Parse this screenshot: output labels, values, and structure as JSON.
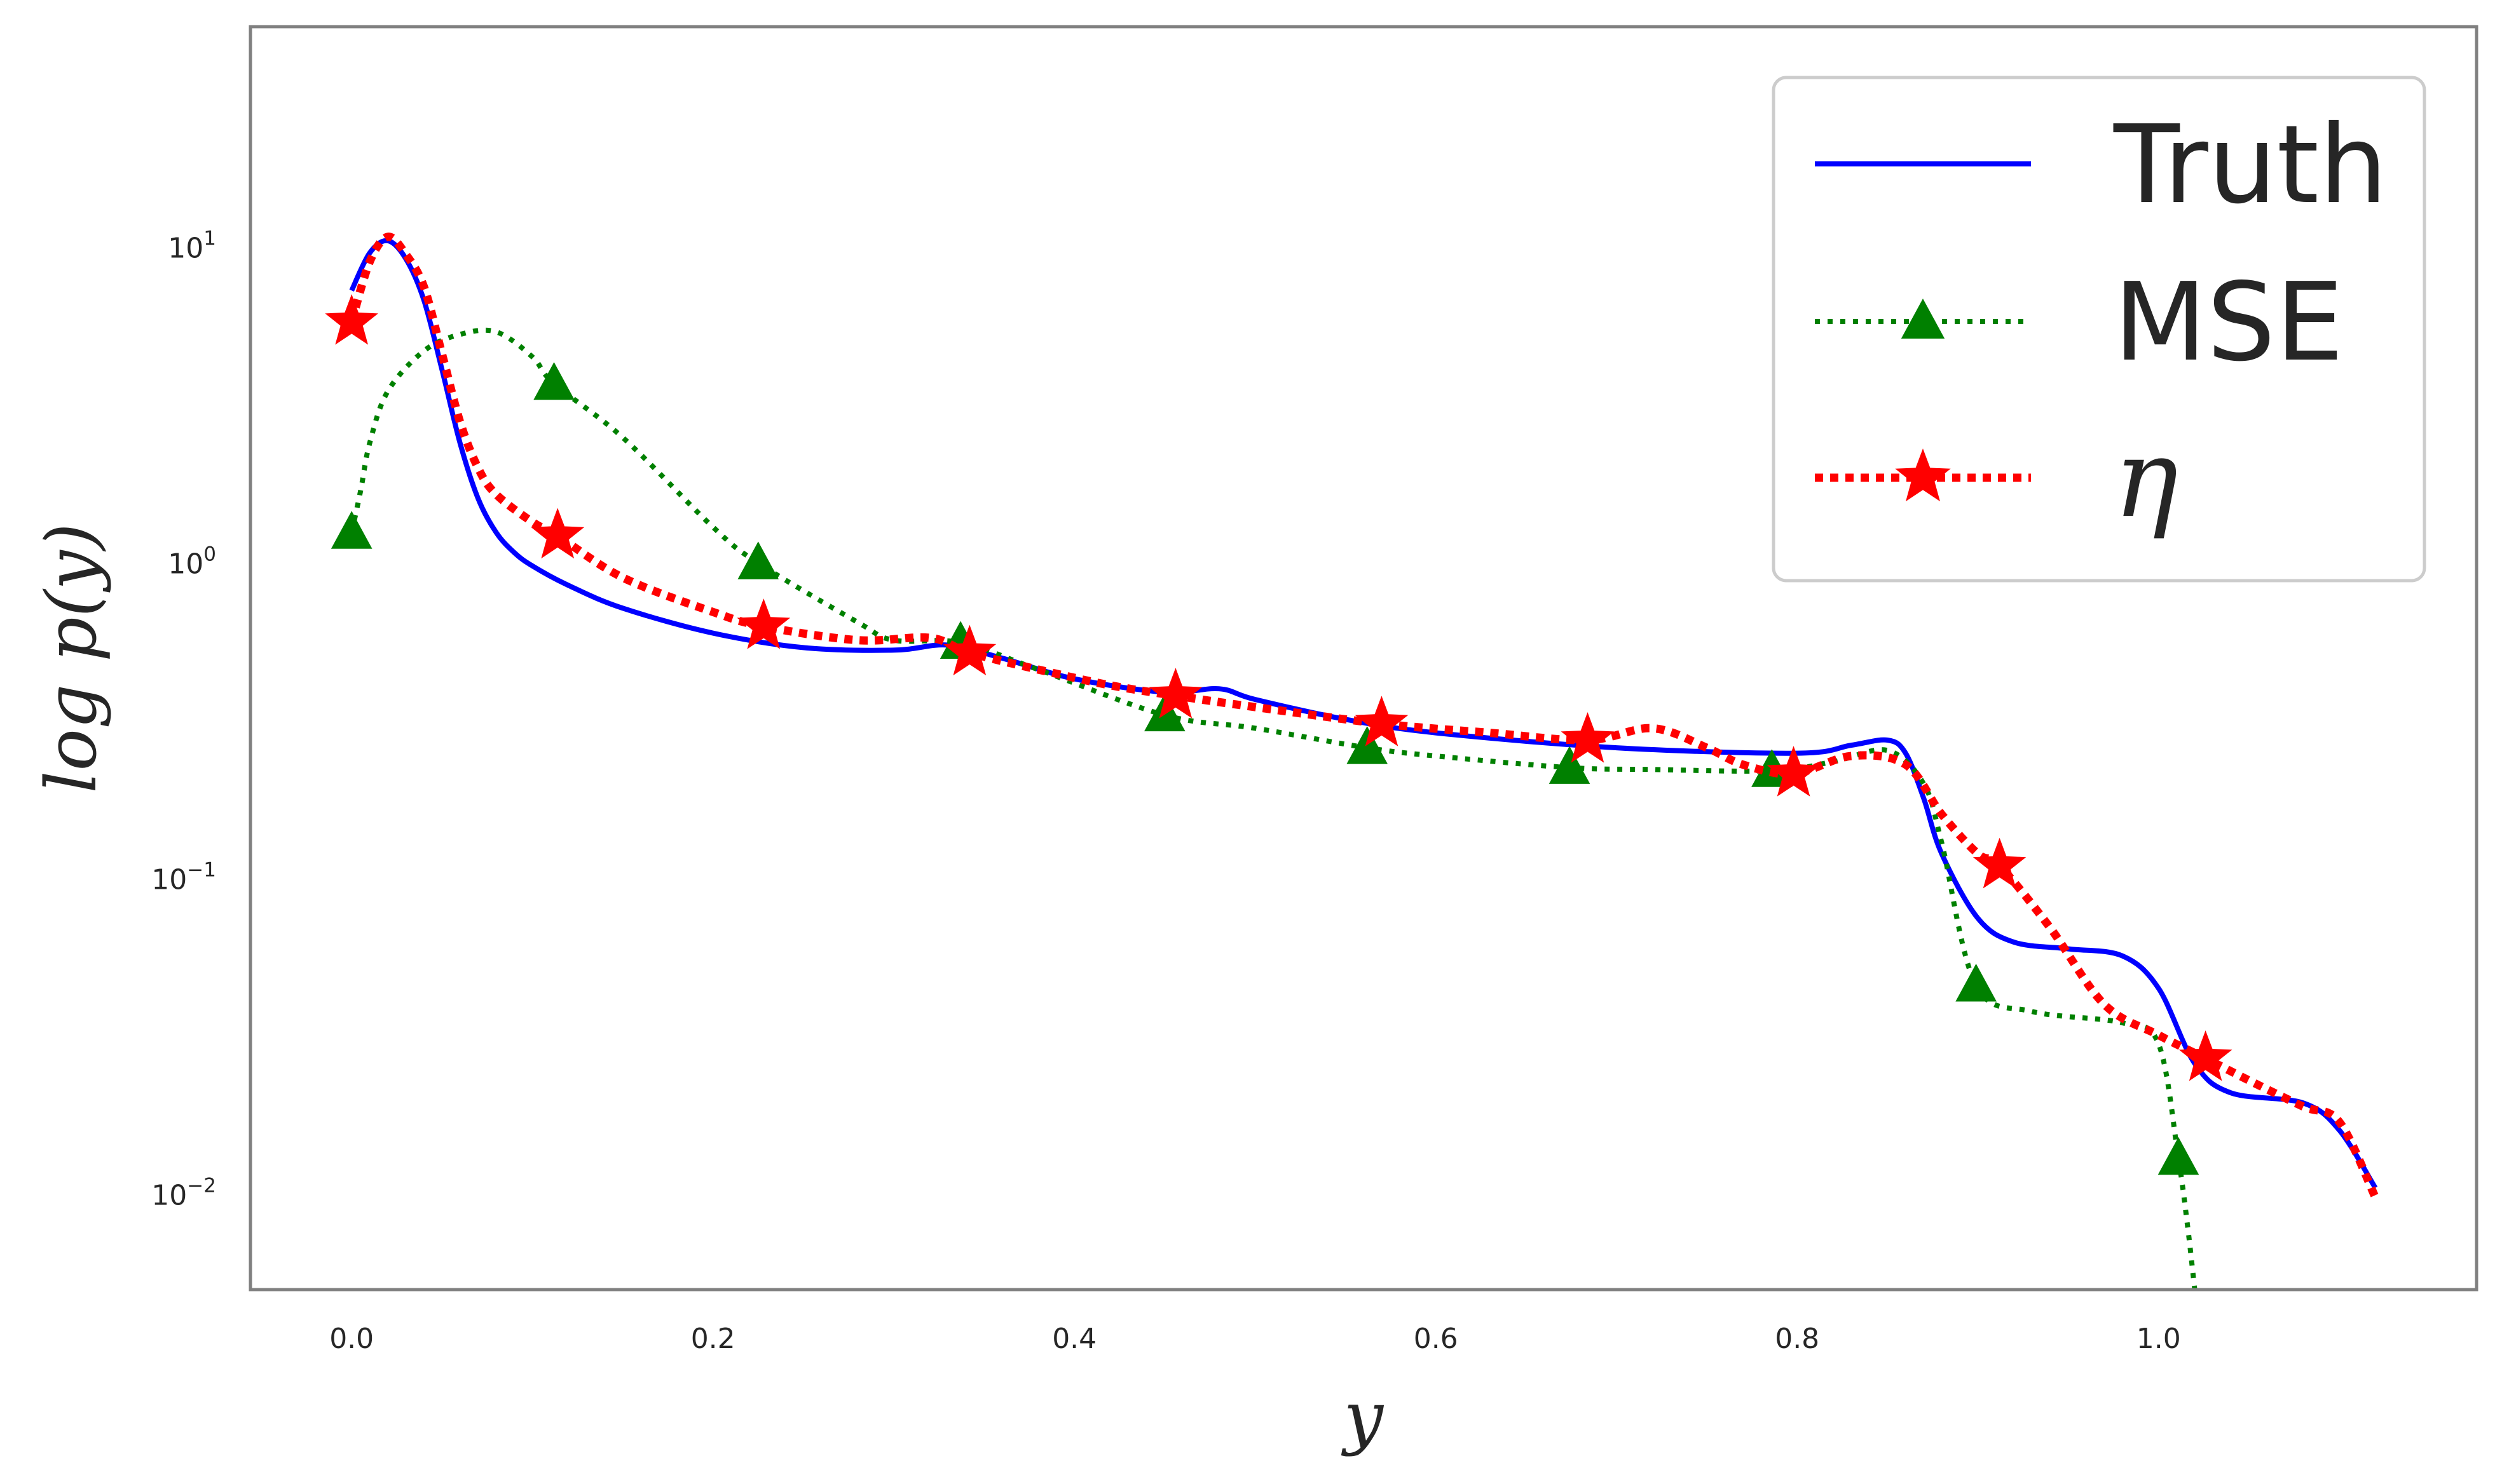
{
  "chart_data": {
    "type": "line",
    "xlabel": "y",
    "ylabel": "log p(y)",
    "y_scale": "log",
    "xlim": [
      -0.056,
      1.176
    ],
    "ylim": [
      0.005,
      50
    ],
    "grid": false,
    "legend_position": "top-right",
    "x_ticks": [
      0.0,
      0.2,
      0.4,
      0.6,
      0.8,
      1.0
    ],
    "x_tick_labels": [
      "0.0",
      "0.2",
      "0.4",
      "0.6",
      "0.8",
      "1.0"
    ],
    "y_ticks": [
      10,
      1,
      0.1,
      0.01
    ],
    "y_tick_labels": [
      {
        "base": "10",
        "exp": "1"
      },
      {
        "base": "10",
        "exp": "0"
      },
      {
        "base": "10",
        "exp": "−1"
      },
      {
        "base": "10",
        "exp": "−2"
      }
    ],
    "series": [
      {
        "name": "Truth",
        "color": "#0000ff",
        "style": "solid",
        "marker": "none",
        "x": [
          0.0,
          0.01,
          0.02,
          0.03,
          0.04,
          0.05,
          0.06,
          0.07,
          0.08,
          0.09,
          0.1,
          0.12,
          0.15,
          0.2,
          0.25,
          0.3,
          0.33,
          0.36,
          0.4,
          0.45,
          0.48,
          0.5,
          0.55,
          0.6,
          0.7,
          0.8,
          0.83,
          0.85,
          0.86,
          0.87,
          0.88,
          0.9,
          0.92,
          0.95,
          0.98,
          1.0,
          1.02,
          1.04,
          1.08,
          1.1,
          1.12
        ],
        "y": [
          7.3,
          9.6,
          10.5,
          9.2,
          6.8,
          4.1,
          2.4,
          1.6,
          1.25,
          1.08,
          0.98,
          0.85,
          0.72,
          0.6,
          0.54,
          0.53,
          0.55,
          0.5,
          0.43,
          0.39,
          0.4,
          0.37,
          0.32,
          0.29,
          0.26,
          0.25,
          0.265,
          0.275,
          0.25,
          0.18,
          0.12,
          0.075,
          0.063,
          0.06,
          0.057,
          0.045,
          0.026,
          0.021,
          0.0195,
          0.016,
          0.0105
        ]
      },
      {
        "name": "MSE",
        "color": "#008000",
        "style": "dotted",
        "marker": "triangle",
        "x": [
          0.0,
          0.005,
          0.01,
          0.02,
          0.04,
          0.06,
          0.08,
          0.1,
          0.112,
          0.15,
          0.2,
          0.225,
          0.28,
          0.3,
          0.337,
          0.38,
          0.45,
          0.5,
          0.562,
          0.6,
          0.674,
          0.72,
          0.786,
          0.82,
          0.85,
          0.87,
          0.88,
          0.899,
          0.93,
          0.98,
          1.0,
          1.011,
          1.016,
          1.02
        ],
        "y": [
          1.25,
          1.7,
          2.4,
          3.5,
          4.7,
          5.3,
          5.4,
          4.5,
          3.7,
          2.5,
          1.3,
          1.0,
          0.65,
          0.57,
          0.56,
          0.46,
          0.33,
          0.3,
          0.26,
          0.245,
          0.225,
          0.222,
          0.22,
          0.235,
          0.255,
          0.2,
          0.13,
          0.046,
          0.038,
          0.035,
          0.03,
          0.013,
          0.008,
          0.005
        ],
        "marker_x": [
          0.0,
          0.112,
          0.225,
          0.337,
          0.45,
          0.562,
          0.674,
          0.786,
          0.899,
          1.011
        ]
      },
      {
        "name": "η",
        "color": "#ff0000",
        "style": "dotted-thick",
        "marker": "star",
        "x": [
          0.0,
          0.01,
          0.02,
          0.03,
          0.04,
          0.05,
          0.06,
          0.07,
          0.08,
          0.1,
          0.114,
          0.15,
          0.2,
          0.228,
          0.28,
          0.32,
          0.342,
          0.38,
          0.42,
          0.456,
          0.5,
          0.57,
          0.63,
          0.684,
          0.72,
          0.75,
          0.77,
          0.798,
          0.83,
          0.86,
          0.88,
          0.9,
          0.912,
          0.94,
          0.97,
          1.0,
          1.026,
          1.05,
          1.08,
          1.1,
          1.12
        ],
        "y": [
          5.8,
          9.0,
          10.8,
          9.5,
          7.5,
          4.6,
          2.8,
          2.0,
          1.65,
          1.35,
          1.22,
          0.9,
          0.7,
          0.63,
          0.57,
          0.58,
          0.52,
          0.46,
          0.41,
          0.38,
          0.35,
          0.31,
          0.29,
          0.275,
          0.3,
          0.26,
          0.23,
          0.215,
          0.245,
          0.23,
          0.16,
          0.12,
          0.11,
          0.07,
          0.04,
          0.032,
          0.027,
          0.023,
          0.019,
          0.017,
          0.0098
        ],
        "marker_x": [
          0.0,
          0.114,
          0.228,
          0.342,
          0.456,
          0.57,
          0.684,
          0.798,
          0.912,
          1.026
        ]
      }
    ]
  }
}
